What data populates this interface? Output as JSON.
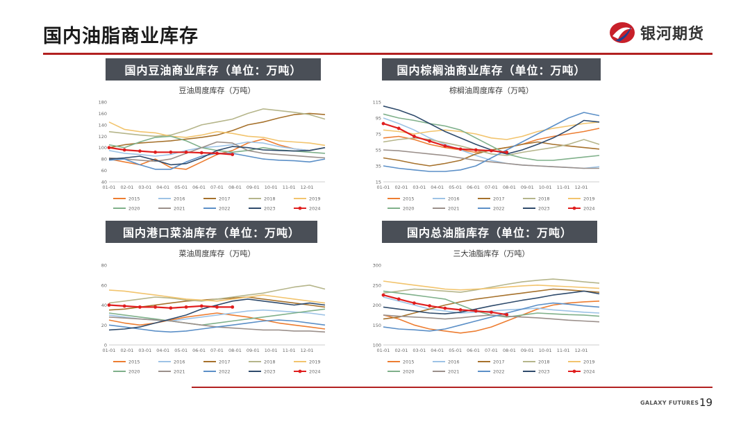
{
  "slide": {
    "title": "国内油脂商业库存",
    "page_number": "19",
    "footer_brand": "GALAXY FUTURES"
  },
  "logo": {
    "text": "银河期货"
  },
  "colors": {
    "accent": "#b22020",
    "header_bg": "#4a4f57",
    "2015": "#ed7d31",
    "2016": "#9dc3e6",
    "2017": "#a6712b",
    "2018": "#b5b58a",
    "2019": "#f2c46d",
    "2020": "#7fb08a",
    "2021": "#9a8f8a",
    "2022": "#5b8fc7",
    "2023": "#2e4a6b",
    "2024": "#e01e1e"
  },
  "panels": [
    {
      "header": "国内豆油商业库存（单位：万吨）"
    },
    {
      "header": "国内棕榈油商业库存（单位：万吨）"
    },
    {
      "header": "国内港口菜油库存（单位：万吨）"
    },
    {
      "header": "国内总油脂库存（单位：万吨）"
    }
  ],
  "chart_data": [
    {
      "type": "line",
      "title": "豆油周度库存（万吨）",
      "ylim": [
        40,
        180
      ],
      "yticks": [
        40,
        60,
        80,
        100,
        120,
        140,
        160,
        180
      ],
      "xlabels": [
        "01-01",
        "02-01",
        "03-01",
        "04-01",
        "05-01",
        "06-01",
        "07-01",
        "08-01",
        "09-01",
        "10-01",
        "11-01",
        "12-01"
      ],
      "series": [
        {
          "name": "2015",
          "values": [
            80,
            75,
            70,
            80,
            65,
            62,
            75,
            88,
            95,
            108,
            115,
            105,
            98,
            95,
            100
          ]
        },
        {
          "name": "2016",
          "values": [
            95,
            90,
            88,
            85,
            88,
            95,
            100,
            102,
            105,
            110,
            108,
            102,
            98,
            95,
            100
          ]
        },
        {
          "name": "2017",
          "values": [
            100,
            105,
            108,
            110,
            112,
            115,
            118,
            122,
            130,
            140,
            145,
            152,
            158,
            160,
            158
          ]
        },
        {
          "name": "2018",
          "values": [
            128,
            125,
            122,
            120,
            122,
            130,
            140,
            145,
            150,
            160,
            168,
            165,
            162,
            158,
            150
          ]
        },
        {
          "name": "2019",
          "values": [
            145,
            132,
            128,
            126,
            120,
            118,
            122,
            128,
            125,
            120,
            118,
            112,
            110,
            108,
            104
          ]
        },
        {
          "name": "2020",
          "values": [
            105,
            100,
            110,
            118,
            120,
            112,
            100,
            95,
            92,
            95,
            100,
            96,
            94,
            92,
            90
          ]
        },
        {
          "name": "2021",
          "values": [
            82,
            80,
            78,
            76,
            80,
            90,
            100,
            110,
            108,
            95,
            90,
            88,
            86,
            84,
            82
          ]
        },
        {
          "name": "2022",
          "values": [
            78,
            80,
            70,
            62,
            62,
            75,
            85,
            90,
            90,
            85,
            80,
            78,
            77,
            75,
            80
          ]
        },
        {
          "name": "2023",
          "values": [
            80,
            82,
            85,
            78,
            70,
            72,
            82,
            95,
            102,
            100,
            96,
            95,
            94,
            95,
            100
          ]
        },
        {
          "name": "2024",
          "values": [
            100,
            96,
            94,
            92,
            92,
            92,
            91,
            90,
            88
          ]
        }
      ]
    },
    {
      "type": "line",
      "title": "棕榈油周度库存（万吨）",
      "ylim": [
        15,
        115
      ],
      "yticks": [
        15,
        35,
        55,
        75,
        95,
        115
      ],
      "xlabels": [
        "01-01",
        "02-01",
        "03-01",
        "04-01",
        "05-01",
        "06-01",
        "07-01",
        "08-01",
        "09-01",
        "10-01",
        "11-01",
        "12-01"
      ],
      "series": [
        {
          "name": "2015",
          "values": [
            70,
            72,
            68,
            62,
            58,
            55,
            52,
            55,
            58,
            62,
            68,
            72,
            75,
            78,
            82
          ]
        },
        {
          "name": "2016",
          "values": [
            95,
            88,
            80,
            70,
            62,
            55,
            48,
            42,
            38,
            36,
            35,
            34,
            33,
            32,
            34
          ]
        },
        {
          "name": "2017",
          "values": [
            45,
            42,
            38,
            35,
            38,
            42,
            50,
            55,
            58,
            62,
            65,
            62,
            60,
            58,
            56
          ]
        },
        {
          "name": "2018",
          "values": [
            65,
            68,
            70,
            68,
            64,
            60,
            55,
            50,
            48,
            52,
            55,
            58,
            62,
            68,
            62
          ]
        },
        {
          "name": "2019",
          "values": [
            80,
            78,
            75,
            78,
            80,
            78,
            75,
            70,
            68,
            72,
            78,
            82,
            85,
            88,
            90
          ]
        },
        {
          "name": "2020",
          "values": [
            100,
            95,
            92,
            88,
            85,
            80,
            70,
            60,
            50,
            45,
            42,
            42,
            44,
            46,
            48
          ]
        },
        {
          "name": "2021",
          "values": [
            55,
            54,
            52,
            50,
            48,
            45,
            42,
            40,
            38,
            36,
            35,
            34,
            33,
            32,
            32
          ]
        },
        {
          "name": "2022",
          "values": [
            35,
            32,
            30,
            28,
            28,
            30,
            35,
            45,
            55,
            65,
            75,
            85,
            95,
            102,
            98
          ]
        },
        {
          "name": "2023",
          "values": [
            110,
            105,
            98,
            88,
            78,
            70,
            62,
            55,
            50,
            55,
            62,
            70,
            80,
            92,
            90
          ]
        },
        {
          "name": "2024",
          "values": [
            88,
            82,
            72,
            66,
            60,
            56,
            55,
            54,
            52
          ]
        }
      ]
    },
    {
      "type": "line",
      "title": "菜油周度库存（万吨）",
      "ylim": [
        0,
        80
      ],
      "yticks": [
        0,
        20,
        40,
        60,
        80
      ],
      "xlabels": [
        "01-01",
        "02-01",
        "03-01",
        "04-01",
        "05-01",
        "06-01",
        "07-01",
        "08-01",
        "09-01",
        "10-01",
        "11-01",
        "12-01"
      ],
      "series": [
        {
          "name": "2015",
          "values": [
            25,
            22,
            20,
            22,
            25,
            28,
            30,
            32,
            30,
            28,
            25,
            22,
            20,
            18,
            16
          ]
        },
        {
          "name": "2016",
          "values": [
            30,
            28,
            26,
            25,
            24,
            26,
            28,
            30,
            32,
            34,
            35,
            34,
            33,
            32,
            30
          ]
        },
        {
          "name": "2017",
          "values": [
            35,
            36,
            38,
            40,
            42,
            44,
            45,
            46,
            47,
            48,
            46,
            44,
            42,
            40,
            38
          ]
        },
        {
          "name": "2018",
          "values": [
            42,
            44,
            46,
            48,
            47,
            45,
            44,
            46,
            48,
            50,
            52,
            55,
            58,
            60,
            56
          ]
        },
        {
          "name": "2019",
          "values": [
            55,
            54,
            52,
            50,
            48,
            46,
            45,
            44,
            46,
            48,
            50,
            48,
            46,
            44,
            42
          ]
        },
        {
          "name": "2020",
          "values": [
            32,
            30,
            28,
            26,
            24,
            22,
            20,
            22,
            24,
            26,
            28,
            30,
            32,
            34,
            36
          ]
        },
        {
          "name": "2021",
          "values": [
            28,
            27,
            26,
            25,
            24,
            22,
            20,
            18,
            17,
            16,
            15,
            15,
            14,
            14,
            13
          ]
        },
        {
          "name": "2022",
          "values": [
            20,
            18,
            16,
            14,
            13,
            14,
            16,
            18,
            20,
            22,
            24,
            25,
            24,
            22,
            20
          ]
        },
        {
          "name": "2023",
          "values": [
            15,
            16,
            18,
            22,
            26,
            30,
            36,
            40,
            44,
            46,
            44,
            42,
            40,
            42,
            40
          ]
        },
        {
          "name": "2024",
          "values": [
            40,
            39,
            38,
            38,
            37,
            38,
            39,
            38,
            38
          ]
        }
      ]
    },
    {
      "type": "line",
      "title": "三大油脂库存（万吨）",
      "ylim": [
        100,
        300
      ],
      "yticks": [
        100,
        150,
        200,
        250,
        300
      ],
      "xlabels": [
        "01-01",
        "02-01",
        "03-01",
        "04-01",
        "05-01",
        "06-01",
        "07-01",
        "08-01",
        "09-01",
        "10-01",
        "11-01",
        "12-01"
      ],
      "series": [
        {
          "name": "2015",
          "values": [
            175,
            165,
            150,
            140,
            135,
            130,
            135,
            145,
            160,
            175,
            190,
            200,
            205,
            208,
            210
          ]
        },
        {
          "name": "2016",
          "values": [
            220,
            210,
            200,
            190,
            185,
            180,
            182,
            185,
            188,
            190,
            192,
            188,
            185,
            182,
            180
          ]
        },
        {
          "name": "2017",
          "values": [
            165,
            170,
            180,
            190,
            200,
            208,
            215,
            220,
            225,
            230,
            235,
            240,
            238,
            235,
            232
          ]
        },
        {
          "name": "2018",
          "values": [
            230,
            235,
            240,
            238,
            235,
            232,
            238,
            245,
            252,
            258,
            262,
            265,
            262,
            258,
            255
          ]
        },
        {
          "name": "2019",
          "values": [
            260,
            255,
            250,
            245,
            240,
            238,
            240,
            242,
            245,
            248,
            250,
            248,
            246,
            244,
            242
          ]
        },
        {
          "name": "2020",
          "values": [
            235,
            230,
            225,
            220,
            215,
            200,
            185,
            175,
            170,
            175,
            180,
            178,
            176,
            175,
            172
          ]
        },
        {
          "name": "2021",
          "values": [
            175,
            172,
            170,
            168,
            165,
            168,
            172,
            175,
            172,
            170,
            168,
            165,
            162,
            160,
            158
          ]
        },
        {
          "name": "2022",
          "values": [
            145,
            140,
            138,
            135,
            140,
            150,
            160,
            170,
            180,
            190,
            200,
            205,
            202,
            198,
            195
          ]
        },
        {
          "name": "2023",
          "values": [
            195,
            190,
            185,
            180,
            178,
            182,
            190,
            198,
            205,
            212,
            218,
            225,
            230,
            235,
            228
          ]
        },
        {
          "name": "2024",
          "values": [
            225,
            215,
            205,
            198,
            192,
            188,
            185,
            182,
            176
          ]
        }
      ]
    }
  ]
}
